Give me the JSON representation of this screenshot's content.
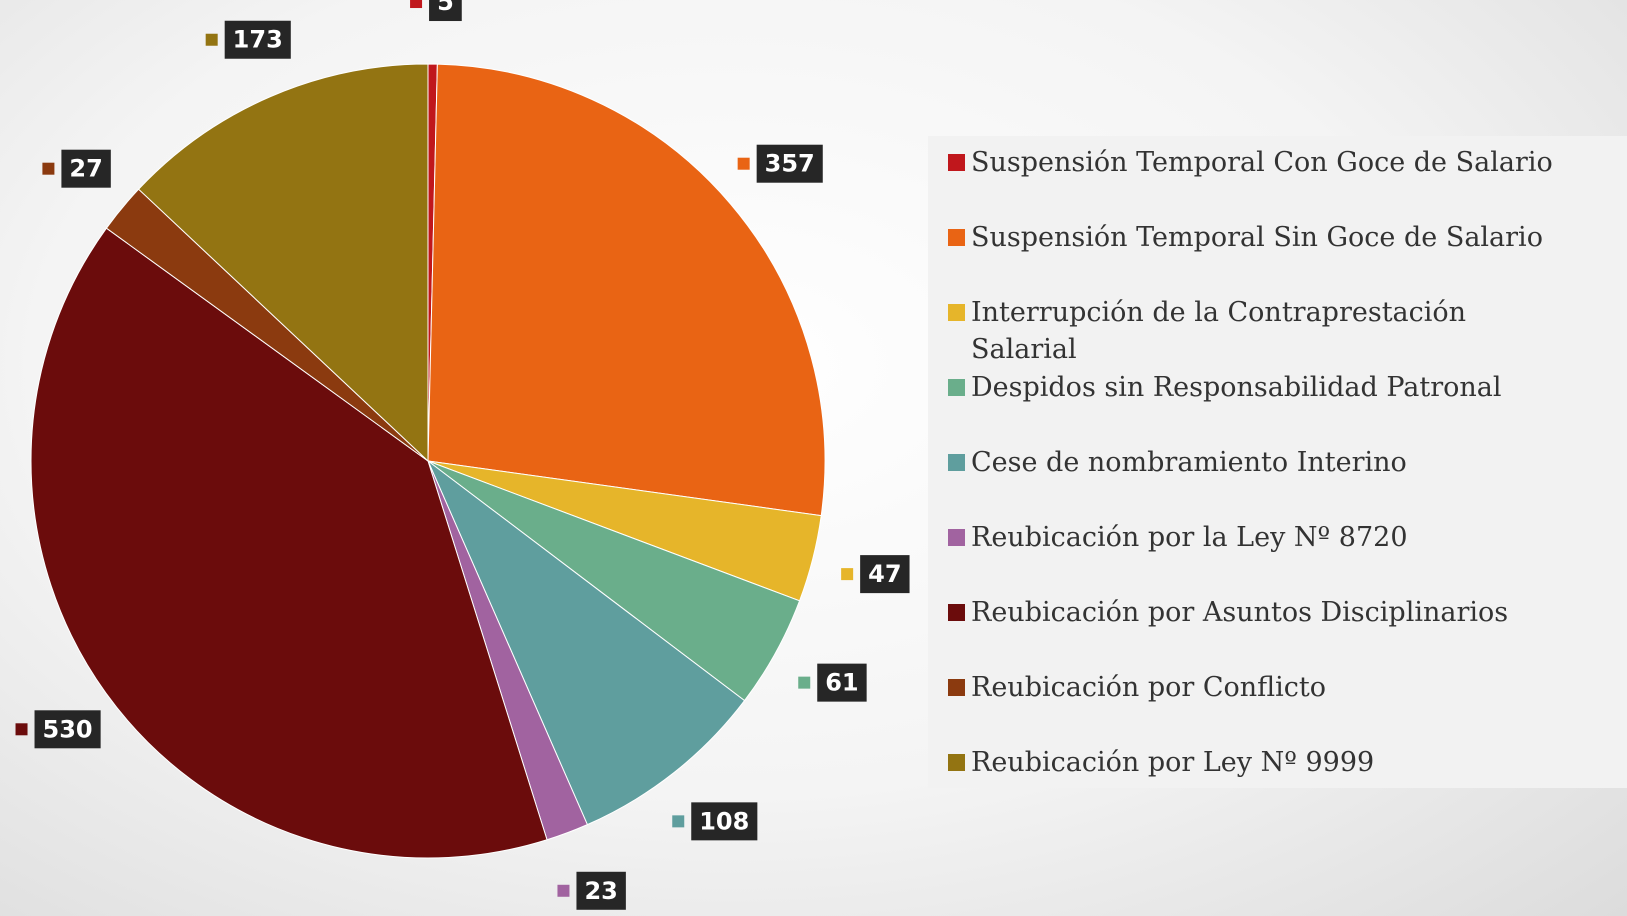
{
  "chart_data": {
    "type": "pie",
    "categories": [
      "Suspensión Temporal Con Goce de Salario",
      "Suspensión Temporal Sin Goce de Salario",
      "Interrupción de la Contraprestación Salarial",
      "Despidos sin Responsabilidad Patronal",
      "Cese de nombramiento Interino",
      "Reubicación por la Ley Nº 8720",
      "Reubicación por Asuntos Disciplinarios",
      "Reubicación por Conflicto",
      "Reubicación por Ley Nº 9999"
    ],
    "values": [
      5,
      357,
      47,
      61,
      108,
      23,
      530,
      27,
      173
    ],
    "colors": [
      "#c0171c",
      "#e96414",
      "#e6b52a",
      "#6aae8b",
      "#5f9e9e",
      "#a163a0",
      "#6b0c0c",
      "#8b3a0f",
      "#937412"
    ],
    "legend": "right"
  }
}
